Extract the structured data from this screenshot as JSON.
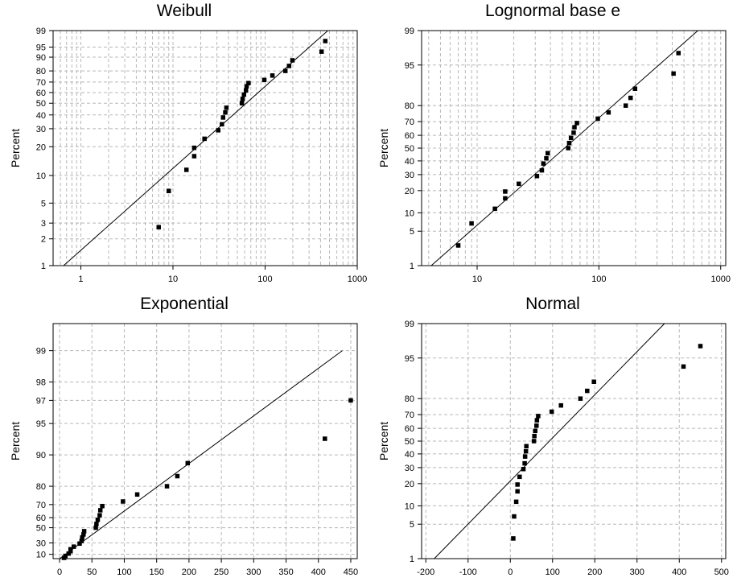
{
  "chart_data": [
    {
      "type": "scatter",
      "title": "Weibull",
      "ylabel": "Percent",
      "xlabel": "",
      "xscale": "log10",
      "yscale": "weibull",
      "xlim": [
        0.5,
        1000
      ],
      "ylim": [
        1,
        99
      ],
      "xticks": [
        1,
        10,
        100,
        1000
      ],
      "xtick_labels": [
        "1",
        "10",
        "100",
        "1000"
      ],
      "yticks": [
        1,
        2,
        3,
        5,
        10,
        20,
        30,
        40,
        50,
        60,
        70,
        80,
        90,
        95,
        99
      ],
      "ytick_labels": [
        "1",
        "2",
        "3",
        "5",
        "10",
        "20",
        "30",
        "40",
        "50",
        "60",
        "70",
        "80",
        "90",
        "95",
        "99"
      ],
      "grid": true,
      "points": [
        [
          7,
          2.7
        ],
        [
          9,
          6.8
        ],
        [
          14,
          11.5
        ],
        [
          17,
          16
        ],
        [
          17,
          19.5
        ],
        [
          22,
          24
        ],
        [
          31,
          29
        ],
        [
          34,
          33
        ],
        [
          35,
          38
        ],
        [
          37,
          42
        ],
        [
          38,
          46
        ],
        [
          56,
          50
        ],
        [
          57,
          54
        ],
        [
          59,
          58
        ],
        [
          62,
          62
        ],
        [
          63,
          66
        ],
        [
          66,
          69
        ],
        [
          98,
          72
        ],
        [
          120,
          76
        ],
        [
          166,
          80
        ],
        [
          182,
          84
        ],
        [
          198,
          88
        ],
        [
          410,
          93
        ],
        [
          450,
          97
        ]
      ],
      "fit_line": [
        [
          0.65,
          1
        ],
        [
          480,
          99
        ]
      ]
    },
    {
      "type": "scatter",
      "title": "Lognormal base e",
      "ylabel": "Percent",
      "xlabel": "",
      "xscale": "log10",
      "yscale": "normal",
      "xlim": [
        3.5,
        1100
      ],
      "ylim": [
        1,
        99
      ],
      "xticks": [
        10,
        100,
        1000
      ],
      "xtick_labels": [
        "10",
        "100",
        "1000"
      ],
      "yticks": [
        1,
        5,
        10,
        20,
        30,
        40,
        50,
        60,
        70,
        80,
        95,
        99
      ],
      "ytick_labels": [
        "1",
        "5",
        "10",
        "20",
        "30",
        "40",
        "50",
        "60",
        "70",
        "80",
        "95",
        "99"
      ],
      "grid": true,
      "points": [
        [
          7,
          2.7
        ],
        [
          9,
          6.8
        ],
        [
          14,
          11.5
        ],
        [
          17,
          16
        ],
        [
          17,
          19.5
        ],
        [
          22,
          24
        ],
        [
          31,
          29
        ],
        [
          34,
          33
        ],
        [
          35,
          38
        ],
        [
          37,
          42
        ],
        [
          38,
          46
        ],
        [
          56,
          50
        ],
        [
          57,
          54
        ],
        [
          59,
          58
        ],
        [
          62,
          62
        ],
        [
          63,
          66
        ],
        [
          66,
          69
        ],
        [
          98,
          72
        ],
        [
          120,
          76
        ],
        [
          166,
          80
        ],
        [
          182,
          84
        ],
        [
          198,
          88
        ],
        [
          410,
          93
        ],
        [
          450,
          97
        ]
      ],
      "fit_line": [
        [
          4.2,
          1
        ],
        [
          650,
          99
        ]
      ]
    },
    {
      "type": "scatter",
      "title": "Exponential",
      "ylabel": "Percent",
      "xlabel": "",
      "xscale": "linear",
      "yscale": "exponential",
      "xlim": [
        -10,
        460
      ],
      "ylim": [
        1,
        99.45
      ],
      "xticks": [
        0,
        50,
        100,
        150,
        200,
        250,
        300,
        350,
        400,
        450
      ],
      "xtick_labels": [
        "0",
        "50",
        "100",
        "150",
        "200",
        "250",
        "300",
        "350",
        "400",
        "450"
      ],
      "yticks": [
        10,
        30,
        50,
        60,
        70,
        80,
        90,
        95,
        97,
        98,
        99
      ],
      "ytick_labels": [
        "10",
        "30",
        "50",
        "60",
        "70",
        "80",
        "90",
        "95",
        "97",
        "98",
        "99"
      ],
      "grid": true,
      "points": [
        [
          7,
          2.7
        ],
        [
          9,
          6.8
        ],
        [
          14,
          11.5
        ],
        [
          17,
          16
        ],
        [
          17,
          19.5
        ],
        [
          22,
          24
        ],
        [
          31,
          29
        ],
        [
          34,
          33
        ],
        [
          35,
          38
        ],
        [
          37,
          42
        ],
        [
          38,
          46
        ],
        [
          56,
          50
        ],
        [
          57,
          54
        ],
        [
          59,
          58
        ],
        [
          62,
          62
        ],
        [
          63,
          66
        ],
        [
          66,
          69
        ],
        [
          98,
          72
        ],
        [
          120,
          76
        ],
        [
          166,
          80
        ],
        [
          182,
          84
        ],
        [
          198,
          88
        ],
        [
          410,
          93
        ],
        [
          450,
          97
        ]
      ],
      "fit_line": [
        [
          0,
          1
        ],
        [
          437,
          99
        ]
      ]
    },
    {
      "type": "scatter",
      "title": "Normal",
      "ylabel": "Percent",
      "xlabel": "",
      "xscale": "linear",
      "yscale": "normal",
      "xlim": [
        -210,
        510
      ],
      "ylim": [
        1,
        99
      ],
      "xticks": [
        -200,
        -100,
        0,
        100,
        200,
        300,
        400,
        500
      ],
      "xtick_labels": [
        "-200",
        "-100",
        "0",
        "100",
        "200",
        "300",
        "400",
        "500"
      ],
      "yticks": [
        1,
        5,
        10,
        20,
        30,
        40,
        50,
        60,
        70,
        80,
        95,
        99
      ],
      "ytick_labels": [
        "1",
        "5",
        "10",
        "20",
        "30",
        "40",
        "50",
        "60",
        "70",
        "80",
        "95",
        "99"
      ],
      "grid": true,
      "points": [
        [
          7,
          2.7
        ],
        [
          9,
          6.8
        ],
        [
          14,
          11.5
        ],
        [
          17,
          16
        ],
        [
          17,
          19.5
        ],
        [
          22,
          24
        ],
        [
          31,
          29
        ],
        [
          34,
          33
        ],
        [
          35,
          38
        ],
        [
          37,
          42
        ],
        [
          38,
          46
        ],
        [
          56,
          50
        ],
        [
          57,
          54
        ],
        [
          59,
          58
        ],
        [
          62,
          62
        ],
        [
          63,
          66
        ],
        [
          66,
          69
        ],
        [
          98,
          72
        ],
        [
          120,
          76
        ],
        [
          166,
          80
        ],
        [
          182,
          84
        ],
        [
          198,
          88
        ],
        [
          410,
          93
        ],
        [
          450,
          97
        ]
      ],
      "fit_line": [
        [
          -180,
          1
        ],
        [
          365,
          99
        ]
      ]
    }
  ]
}
